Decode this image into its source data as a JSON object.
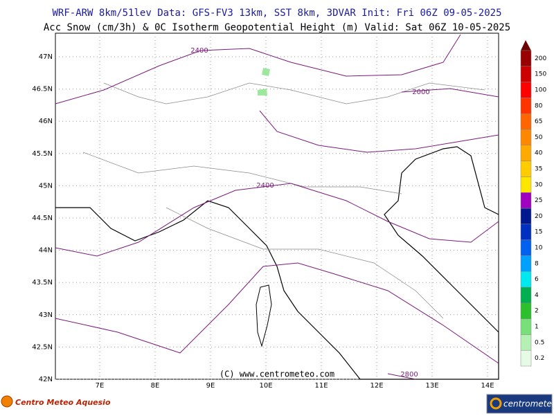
{
  "header": {
    "line1": "WRF-ARW 8km/51lev  Data: GFS-FV3 13km, SST 8km, 3DVAR  Init: Fri 06Z 09-05-2025",
    "line2": "Acc Snow (cm/3h) & 0C Isotherm Geopotential Height (m)  Valid: Sat 06Z 10-05-2025"
  },
  "map": {
    "lat_labels": [
      "47N",
      "46.5N",
      "46N",
      "45.5N",
      "45N",
      "44.5N",
      "44N",
      "43.5N",
      "43N",
      "42.5N",
      "42N"
    ],
    "lon_labels": [
      "7E",
      "8E",
      "9E",
      "10E",
      "11E",
      "12E",
      "13E",
      "14E"
    ],
    "contour_labels": [
      "2400",
      "2000",
      "2400",
      "2800"
    ],
    "credit": "(C) www.centrometeo.com"
  },
  "legend": {
    "labels": [
      "0.2",
      "0.5",
      "1",
      "2",
      "4",
      "6",
      "8",
      "10",
      "15",
      "20",
      "25",
      "30",
      "35",
      "40",
      "50",
      "65",
      "80",
      "100",
      "150",
      "200"
    ],
    "colors": [
      "#e6fae6",
      "#b4f0b4",
      "#78e078",
      "#2cc02c",
      "#00b050",
      "#00e8f0",
      "#00a0ff",
      "#0060f0",
      "#0030c0",
      "#001890",
      "#a000c0",
      "#ffe600",
      "#ffcc00",
      "#ffaa00",
      "#ff8800",
      "#ff6600",
      "#ff3300",
      "#ff0000",
      "#cc0000",
      "#990000"
    ],
    "top_color": "#6a0000"
  },
  "footer": {
    "logo_left": "Centro Meteo Aquesio",
    "logo_right": "centrometeo"
  }
}
